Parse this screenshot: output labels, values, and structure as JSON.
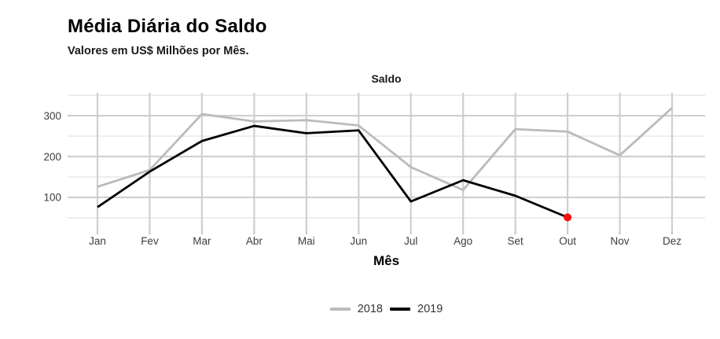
{
  "header": {
    "title": "Média Diária do Saldo",
    "subtitle": "Valores em US$ Milhões por Mês."
  },
  "chart_data": {
    "type": "line",
    "title": "Saldo",
    "xlabel": "Mês",
    "ylabel": "",
    "categories": [
      "Jan",
      "Fev",
      "Mar",
      "Abr",
      "Mai",
      "Jun",
      "Jul",
      "Ago",
      "Set",
      "Out",
      "Nov",
      "Dez"
    ],
    "yticks": [
      100,
      200,
      300
    ],
    "yticks_minor": [
      50,
      150,
      250,
      350
    ],
    "ylim": [
      19,
      356
    ],
    "grid": true,
    "legend_position": "bottom",
    "series": [
      {
        "name": "2018",
        "color": "#BBBBBB",
        "values": [
          126,
          167,
          304,
          286,
          289,
          276,
          174,
          118,
          267,
          261,
          203,
          319
        ]
      },
      {
        "name": "2019",
        "color": "#000000",
        "values": [
          76,
          163,
          238,
          275,
          257,
          264,
          90,
          142,
          104,
          51
        ],
        "endpoint_marker": {
          "color": "#F8100D",
          "radius": 5
        }
      }
    ]
  },
  "colors": {
    "background": "#FFFFFF",
    "grid_major": "#CFCFCF",
    "grid_minor": "#E2E2E2",
    "tick_mark": "#C4C4C4",
    "axis_text": "#3D3D3D",
    "legend_text": "#333333"
  }
}
